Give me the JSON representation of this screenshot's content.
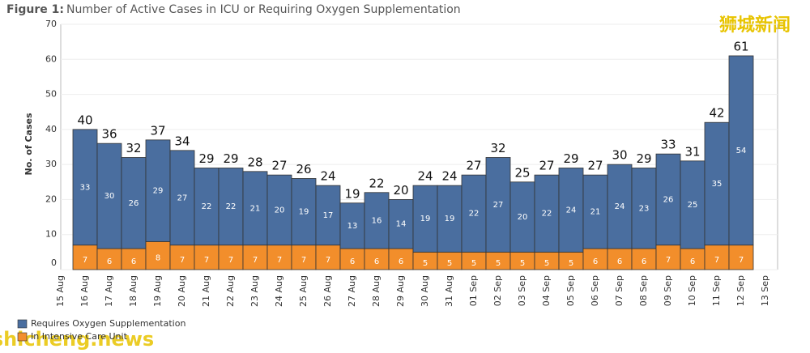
{
  "chart_data": {
    "type": "stacked_bar",
    "title_prefix": "Figure 1:",
    "title": "Number of Active Cases in ICU or Requiring Oxygen Supplementation",
    "y_label": "No. of Cases",
    "categories": [
      "15 Aug",
      "16 Aug",
      "17 Aug",
      "18 Aug",
      "19 Aug",
      "20 Aug",
      "21 Aug",
      "22 Aug",
      "23 Aug",
      "24 Aug",
      "25 Aug",
      "26 Aug",
      "27 Aug",
      "28 Aug",
      "29 Aug",
      "30 Aug",
      "31 Aug",
      "01 Sep",
      "02 Sep",
      "03 Sep",
      "04 Sep",
      "05 Sep",
      "06 Sep",
      "07 Sep",
      "08 Sep",
      "09 Sep",
      "10 Sep",
      "11 Sep",
      "12 Sep",
      "13 Sep"
    ],
    "series": [
      {
        "name": "In Intensive Care Unit",
        "color": "#f28e2b",
        "values": [
          null,
          7,
          6,
          6,
          8,
          7,
          7,
          7,
          7,
          7,
          7,
          7,
          6,
          6,
          6,
          5,
          5,
          5,
          5,
          5,
          5,
          5,
          6,
          6,
          6,
          7,
          6,
          7,
          7,
          null
        ]
      },
      {
        "name": "Requires Oxygen Supplementation",
        "color": "#4a6e9f",
        "values": [
          null,
          33,
          30,
          26,
          29,
          27,
          22,
          22,
          21,
          20,
          19,
          17,
          13,
          16,
          14,
          19,
          19,
          22,
          27,
          20,
          22,
          24,
          21,
          24,
          23,
          26,
          25,
          35,
          54,
          null
        ]
      }
    ],
    "totals": [
      null,
      40,
      36,
      32,
      37,
      34,
      29,
      29,
      28,
      27,
      26,
      24,
      19,
      22,
      20,
      24,
      24,
      27,
      32,
      25,
      27,
      29,
      27,
      30,
      29,
      33,
      31,
      42,
      61,
      null
    ],
    "ylim": [
      0,
      70
    ],
    "yticks": [
      0,
      10,
      20,
      30,
      40,
      50,
      60,
      70
    ],
    "grid": true,
    "watermarks": [
      "狮城新闻",
      "shicheng.news"
    ]
  }
}
